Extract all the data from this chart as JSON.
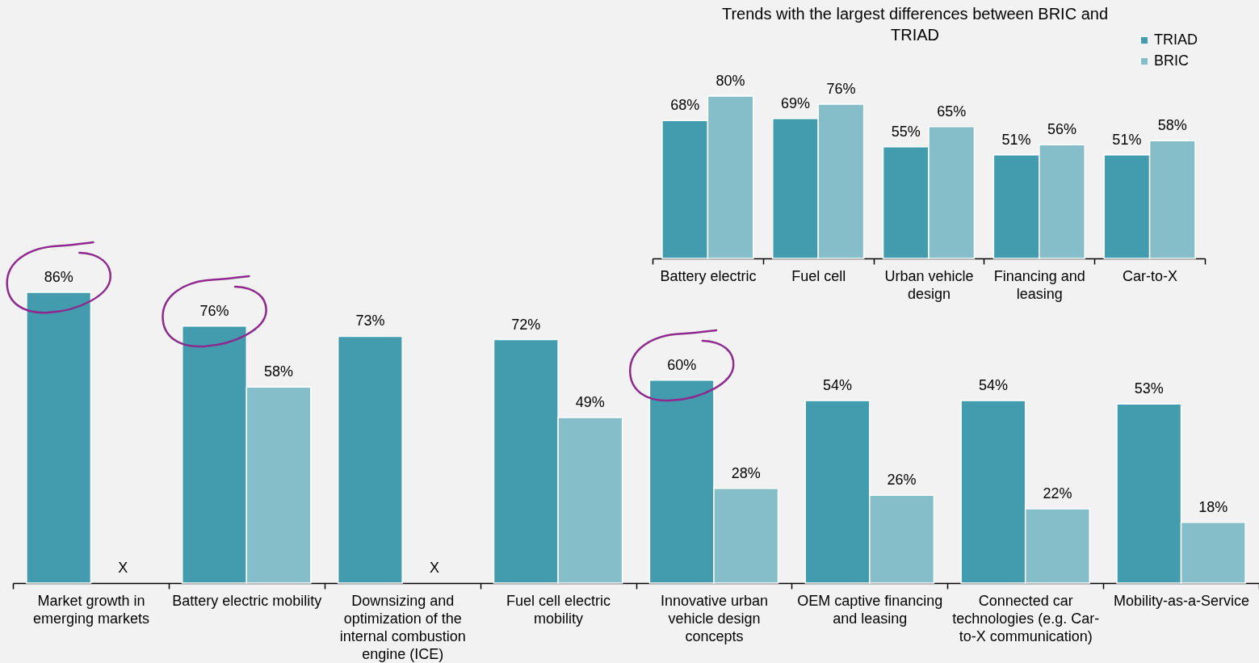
{
  "chart_data": [
    {
      "type": "bar",
      "categories": [
        "Market growth in emerging markets",
        "Battery electric mobility",
        "Downsizing and optimization of the internal combustion engine (ICE)",
        "Fuel cell electric mobility",
        "Innovative urban vehicle design concepts",
        "OEM captive financing and leasing",
        "Connected car technologies (e.g. Car-to-X communication)",
        "Mobility-as-a-Service"
      ],
      "series": [
        {
          "color": "#429cae",
          "values": [
            86,
            76,
            73,
            72,
            60,
            54,
            54,
            53
          ],
          "value_labels": [
            "86%",
            "76%",
            "73%",
            "72%",
            "60%",
            "54%",
            "54%",
            "53%"
          ]
        },
        {
          "color": "#85bec9",
          "values": [
            null,
            58,
            null,
            49,
            28,
            26,
            22,
            18
          ],
          "value_labels": [
            "X",
            "58%",
            "X",
            "49%",
            "28%",
            "26%",
            "22%",
            "18%"
          ]
        }
      ],
      "tick_labels": "x"
    },
    {
      "type": "bar",
      "title": "Trends with the largest differences between BRIC and TRIAD",
      "categories": [
        "Battery electric",
        "Fuel cell",
        "Urban vehicle design",
        "Financing and leasing",
        "Car-to-X"
      ],
      "series": [
        {
          "name": "TRIAD",
          "color": "#429cae",
          "values": [
            68,
            69,
            55,
            51,
            51
          ],
          "value_labels": [
            "68%",
            "69%",
            "55%",
            "51%",
            "51%"
          ]
        },
        {
          "name": "BRIC",
          "color": "#85bec9",
          "values": [
            80,
            76,
            65,
            56,
            58
          ],
          "value_labels": [
            "80%",
            "76%",
            "65%",
            "56%",
            "58%"
          ]
        }
      ],
      "legend": "top right",
      "tick_labels": "x"
    }
  ]
}
